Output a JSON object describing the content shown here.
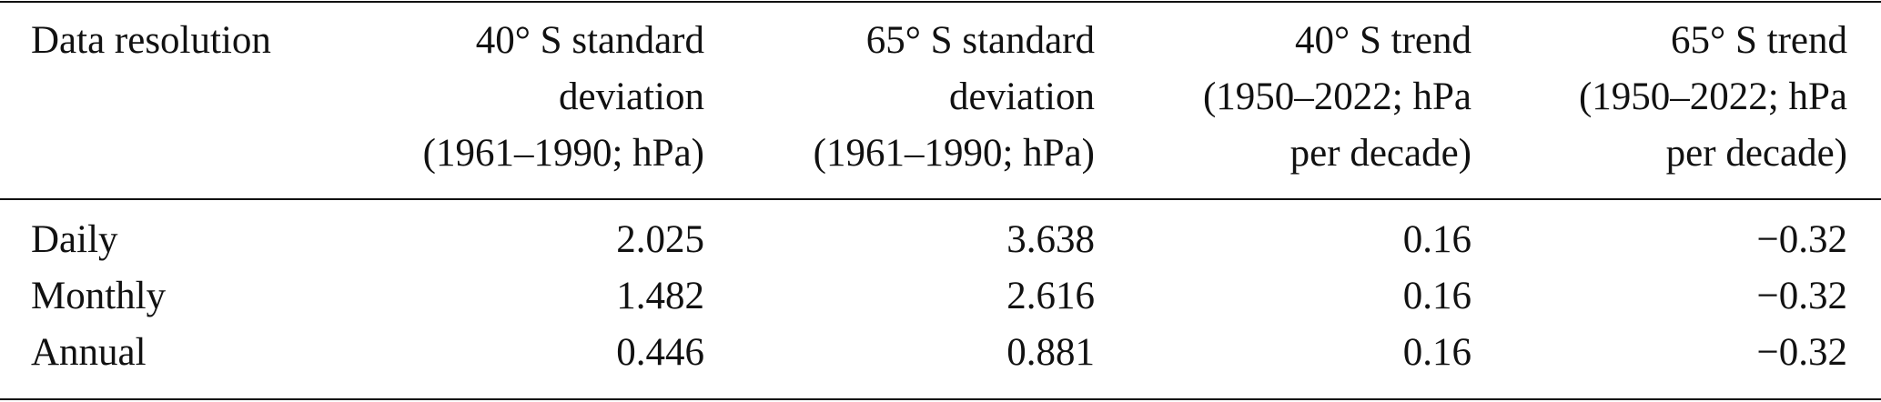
{
  "table": {
    "header": [
      [
        "Data resolution"
      ],
      [
        "40° S standard",
        "deviation",
        "(1961–1990; hPa)"
      ],
      [
        "65° S standard",
        "deviation",
        "(1961–1990; hPa)"
      ],
      [
        "40° S trend",
        "(1950–2022; hPa",
        "per decade)"
      ],
      [
        "65° S trend",
        "(1950–2022; hPa",
        "per decade)"
      ]
    ],
    "rows": [
      [
        "Daily",
        "2.025",
        "3.638",
        "0.16",
        "−0.32"
      ],
      [
        "Monthly",
        "1.482",
        "2.616",
        "0.16",
        "−0.32"
      ],
      [
        "Annual",
        "0.446",
        "0.881",
        "0.16",
        "−0.32"
      ]
    ]
  }
}
